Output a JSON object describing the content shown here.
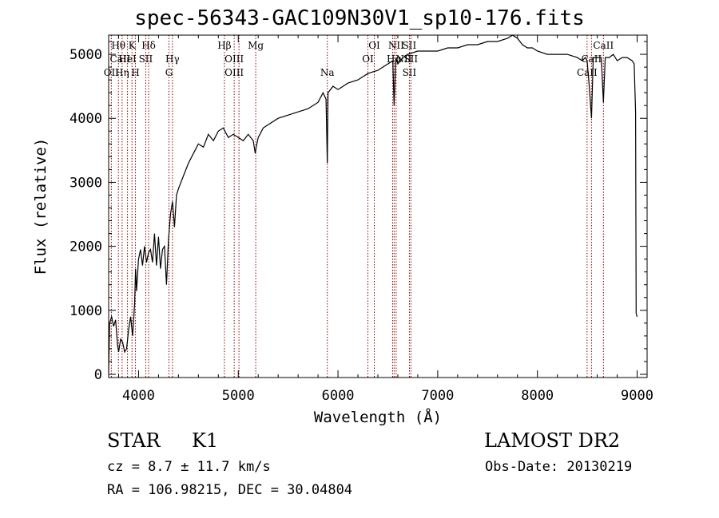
{
  "title": "spec-56343-GAC109N30V1_sp10-176.fits",
  "chart_data": {
    "type": "line",
    "xlabel": "Wavelength (Å)",
    "ylabel": "Flux (relative)",
    "xlim": [
      3700,
      9100
    ],
    "ylim": [
      -50,
      5300
    ],
    "x_ticks": [
      4000,
      5000,
      6000,
      7000,
      8000,
      9000
    ],
    "y_ticks": [
      0,
      1000,
      2000,
      3000,
      4000,
      5000
    ],
    "grid": false,
    "series": [
      {
        "x": [
          3700,
          3710,
          3730,
          3750,
          3770,
          3790,
          3800,
          3820,
          3840,
          3860,
          3880,
          3900,
          3920,
          3940,
          3960,
          3970,
          3980,
          4000,
          4020,
          4040,
          4060,
          4080,
          4100,
          4120,
          4140,
          4160,
          4180,
          4200,
          4220,
          4240,
          4260,
          4280,
          4300,
          4320,
          4340,
          4360,
          4380,
          4400,
          4450,
          4500,
          4550,
          4600,
          4650,
          4700,
          4750,
          4800,
          4850,
          4900,
          4950,
          5000,
          5050,
          5100,
          5150,
          5170,
          5180,
          5200,
          5250,
          5300,
          5400,
          5500,
          5600,
          5700,
          5800,
          5850,
          5880,
          5893,
          5900,
          5950,
          6000,
          6100,
          6200,
          6300,
          6400,
          6450,
          6500,
          6550,
          6563,
          6580,
          6600,
          6650,
          6700,
          6800,
          6900,
          7000,
          7100,
          7200,
          7300,
          7400,
          7500,
          7600,
          7700,
          7750,
          7800,
          7850,
          7900,
          7950,
          8000,
          8100,
          8200,
          8300,
          8400,
          8450,
          8480,
          8498,
          8520,
          8542,
          8560,
          8600,
          8640,
          8662,
          8680,
          8720,
          8760,
          8800,
          8850,
          8900,
          8950,
          8970,
          8985,
          8990,
          9000
        ],
        "values": [
          30,
          800,
          900,
          750,
          850,
          450,
          350,
          550,
          500,
          350,
          400,
          700,
          900,
          600,
          1100,
          1650,
          1300,
          1800,
          1950,
          1700,
          2000,
          1750,
          1900,
          1950,
          1750,
          2200,
          1700,
          2150,
          1650,
          1950,
          2000,
          1400,
          2100,
          2500,
          2700,
          2300,
          2800,
          2900,
          3100,
          3300,
          3450,
          3600,
          3550,
          3750,
          3650,
          3800,
          3850,
          3700,
          3750,
          3700,
          3650,
          3750,
          3650,
          3450,
          3550,
          3700,
          3850,
          3900,
          4000,
          4050,
          4100,
          4150,
          4250,
          4400,
          4300,
          3300,
          4400,
          4500,
          4450,
          4550,
          4600,
          4700,
          4750,
          4800,
          4850,
          4900,
          4200,
          4950,
          4850,
          4950,
          5000,
          5050,
          5050,
          5050,
          5100,
          5100,
          5150,
          5150,
          5200,
          5200,
          5250,
          5300,
          5250,
          5150,
          5100,
          5100,
          5050,
          5000,
          5000,
          5000,
          4950,
          4900,
          4950,
          4900,
          4500,
          4000,
          4950,
          4950,
          4950,
          4250,
          4950,
          4950,
          5000,
          4900,
          4950,
          4950,
          4900,
          4850,
          4100,
          950,
          900
        ]
      }
    ],
    "line_color": "#000000",
    "marker_color": "#8b0000",
    "spectral_lines": [
      {
        "label": "Hθ",
        "x": 3798,
        "row": 0
      },
      {
        "label": "CaII",
        "x": 3815,
        "row": 1
      },
      {
        "label": "OII",
        "x": 3727,
        "row": 2
      },
      {
        "label": "Hη",
        "x": 3835,
        "row": 2
      },
      {
        "label": "HeI",
        "x": 3889,
        "row": 1
      },
      {
        "label": "K",
        "x": 3934,
        "row": 0
      },
      {
        "label": "H",
        "x": 3968,
        "row": 2
      },
      {
        "label": "Hδ",
        "x": 4101,
        "row": 0
      },
      {
        "label": "SII",
        "x": 4072,
        "row": 1
      },
      {
        "label": "Hγ",
        "x": 4340,
        "row": 1
      },
      {
        "label": "G",
        "x": 4305,
        "row": 2
      },
      {
        "label": "Hβ",
        "x": 4861,
        "row": 0
      },
      {
        "label": "OIII",
        "x": 4959,
        "row": 1
      },
      {
        "label": "OIII",
        "x": 4959,
        "row": 2
      },
      {
        "label": "Mg",
        "x": 5175,
        "row": 0
      },
      {
        "label": "Na",
        "x": 5893,
        "row": 2
      },
      {
        "label": "OI",
        "x": 6364,
        "row": 0
      },
      {
        "label": "OI",
        "x": 6300,
        "row": 1
      },
      {
        "label": "NII",
        "x": 6583,
        "row": 0
      },
      {
        "label": "Hα",
        "x": 6563,
        "row": 1
      },
      {
        "label": "SII",
        "x": 6716,
        "row": 0
      },
      {
        "label": "NII",
        "x": 6660,
        "row": 1
      },
      {
        "label": "SII",
        "x": 6731,
        "row": 1
      },
      {
        "label": "SII",
        "x": 6716,
        "row": 2
      },
      {
        "label": "CaII",
        "x": 8662,
        "row": 0
      },
      {
        "label": "CaII",
        "x": 8542,
        "row": 1
      },
      {
        "label": "CaII",
        "x": 8498,
        "row": 2
      }
    ],
    "marker_x": [
      3727,
      3798,
      3835,
      3889,
      3934,
      3968,
      4072,
      4101,
      4305,
      4340,
      4861,
      4959,
      5007,
      5175,
      5893,
      6300,
      6364,
      6548,
      6563,
      6583,
      6716,
      6731,
      8498,
      8542,
      8662
    ]
  },
  "footer": {
    "object_type": "STAR",
    "subclass": "K1",
    "survey": "LAMOST DR2",
    "redshift": "cz = 8.7 ± 11.7 km/s",
    "obs_date": "Obs-Date: 20130219",
    "coords": "RA = 106.98215, DEC =  30.04804"
  }
}
